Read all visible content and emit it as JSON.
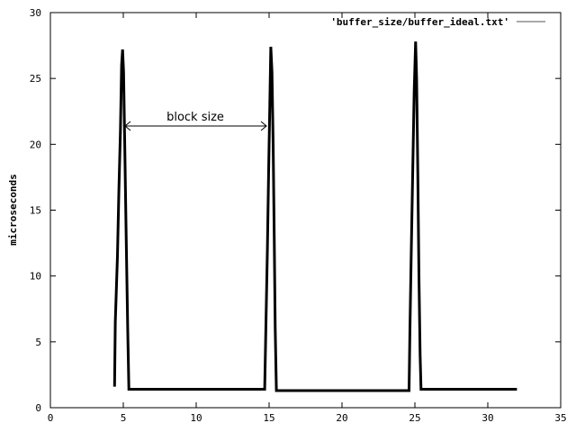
{
  "chart_data": {
    "type": "line",
    "title": "",
    "xlabel": "",
    "ylabel": "microseconds",
    "xlim": [
      0,
      35
    ],
    "ylim": [
      0,
      30
    ],
    "xticks": [
      0,
      5,
      10,
      15,
      20,
      25,
      30,
      35
    ],
    "yticks": [
      0,
      5,
      10,
      15,
      20,
      25,
      30
    ],
    "grid": false,
    "legend_position": "top-right",
    "series": [
      {
        "name": "'buffer_size/buffer_ideal.txt'",
        "color": "#000000",
        "points": [
          [
            4.4,
            1.6
          ],
          [
            4.45,
            6.5
          ],
          [
            4.6,
            11.5
          ],
          [
            4.7,
            16.5
          ],
          [
            4.8,
            21.0
          ],
          [
            4.88,
            26.0
          ],
          [
            4.95,
            27.2
          ],
          [
            5.02,
            25.5
          ],
          [
            5.1,
            20.0
          ],
          [
            5.2,
            13.0
          ],
          [
            5.3,
            6.0
          ],
          [
            5.38,
            1.4
          ],
          [
            14.7,
            1.4
          ],
          [
            14.78,
            6.0
          ],
          [
            14.88,
            12.0
          ],
          [
            14.97,
            18.0
          ],
          [
            15.05,
            23.0
          ],
          [
            15.12,
            27.4
          ],
          [
            15.2,
            25.5
          ],
          [
            15.28,
            20.0
          ],
          [
            15.35,
            13.0
          ],
          [
            15.42,
            6.0
          ],
          [
            15.5,
            1.3
          ],
          [
            24.6,
            1.3
          ],
          [
            24.66,
            6.0
          ],
          [
            24.75,
            12.0
          ],
          [
            24.85,
            18.0
          ],
          [
            24.95,
            24.0
          ],
          [
            25.05,
            27.8
          ],
          [
            25.12,
            25.0
          ],
          [
            25.2,
            18.0
          ],
          [
            25.28,
            10.0
          ],
          [
            25.36,
            4.0
          ],
          [
            25.42,
            1.4
          ],
          [
            32.0,
            1.4
          ]
        ]
      }
    ],
    "annotations": [
      {
        "text": "block size",
        "x": 10.0,
        "y": 22.1
      }
    ]
  }
}
